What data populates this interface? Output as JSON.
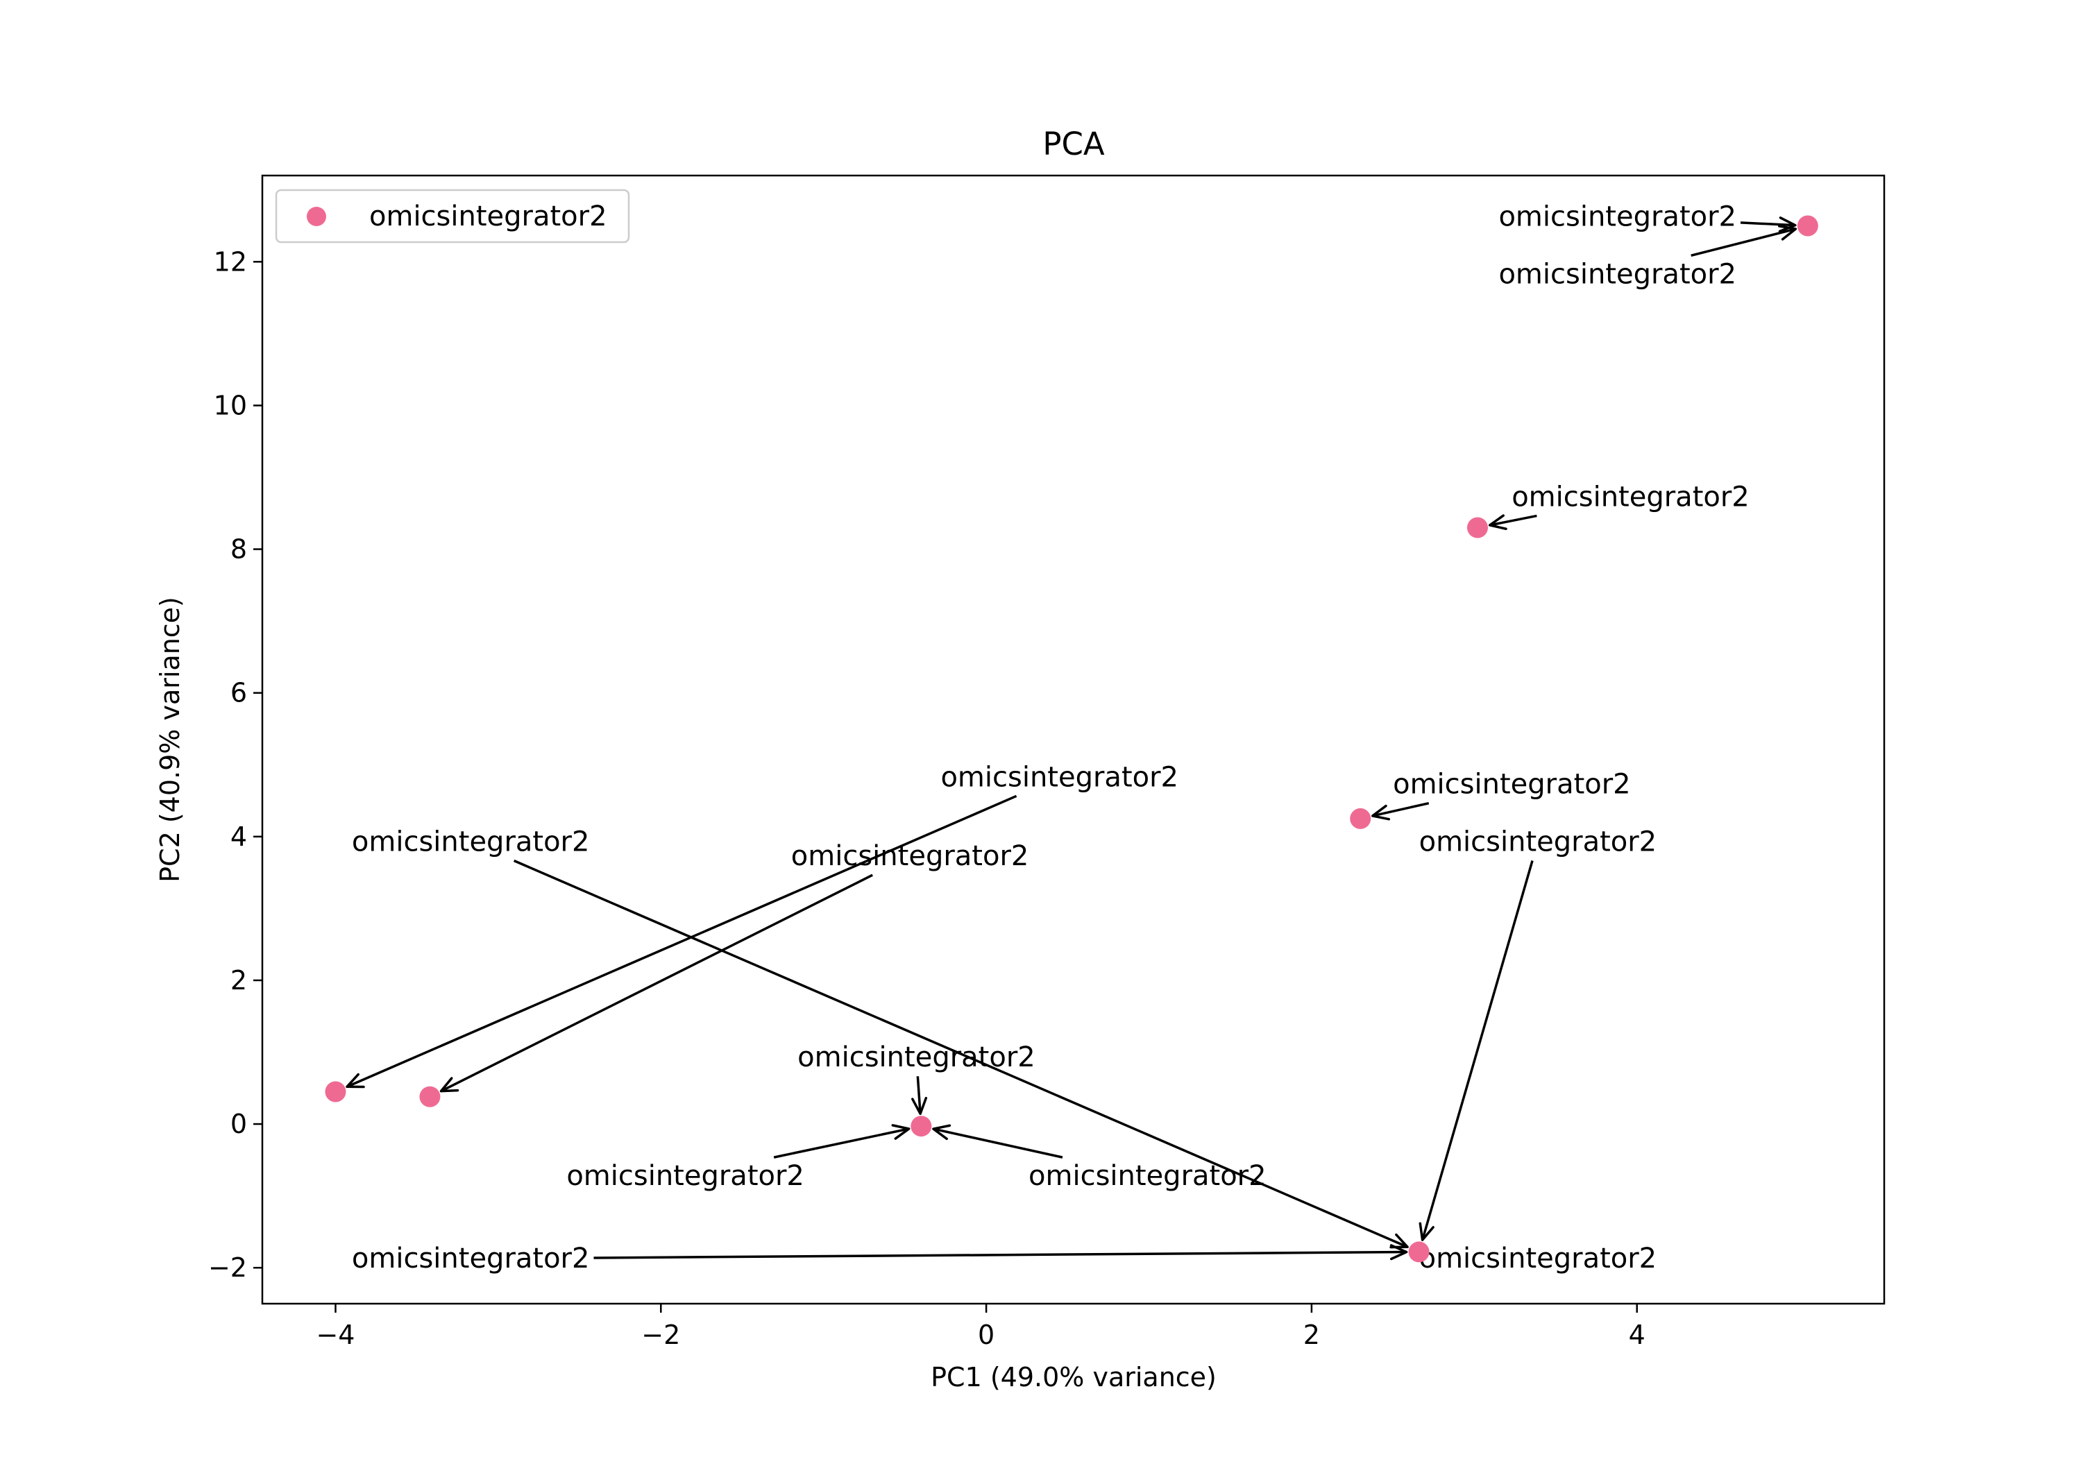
{
  "chart_data": {
    "type": "scatter",
    "title": "PCA",
    "xlabel": "PC1 (49.0% variance)",
    "ylabel": "PC2 (40.9% variance)",
    "xlim": [
      -4.45,
      5.52
    ],
    "ylim": [
      -2.5,
      13.2
    ],
    "xticks": [
      -4,
      -2,
      0,
      2,
      4
    ],
    "xtick_labels": [
      "−4",
      "−2",
      "0",
      "2",
      "4"
    ],
    "yticks": [
      -2,
      0,
      2,
      4,
      6,
      8,
      10,
      12
    ],
    "ytick_labels": [
      "−2",
      "0",
      "2",
      "4",
      "6",
      "8",
      "10",
      "12"
    ],
    "grid": false,
    "legend_position": "top-left",
    "marker_color": "#ef6a93",
    "series": [
      {
        "name": "omicsintegrator2",
        "points": [
          {
            "x": 5.05,
            "y": 12.5
          },
          {
            "x": 3.02,
            "y": 8.3
          },
          {
            "x": 2.3,
            "y": 4.25
          },
          {
            "x": -4.0,
            "y": 0.45
          },
          {
            "x": -3.42,
            "y": 0.38
          },
          {
            "x": -0.4,
            "y": -0.03
          },
          {
            "x": 2.66,
            "y": -1.78
          }
        ]
      }
    ],
    "annotations": [
      {
        "text": "omicsintegrator2",
        "text_x": 3.15,
        "text_y": 12.5,
        "target_x": 5.05,
        "target_y": 12.5
      },
      {
        "text": "omicsintegrator2",
        "text_x": 3.15,
        "text_y": 11.7,
        "target_x": 5.05,
        "target_y": 12.5
      },
      {
        "text": "omicsintegrator2",
        "text_x": 3.23,
        "text_y": 8.6,
        "target_x": 3.02,
        "target_y": 8.3
      },
      {
        "text": "omicsintegrator2",
        "text_x": 2.5,
        "text_y": 4.6,
        "target_x": 2.3,
        "target_y": 4.25
      },
      {
        "text": "omicsintegrator2",
        "text_x": 2.66,
        "text_y": 3.8,
        "target_x": 2.66,
        "target_y": -1.78
      },
      {
        "text": "omicsintegrator2",
        "text_x": 2.66,
        "text_y": -2.0,
        "target_x": 2.66,
        "target_y": -1.78
      },
      {
        "text": "omicsintegrator2",
        "text_x": -0.28,
        "text_y": 4.7,
        "target_x": -4.0,
        "target_y": 0.45
      },
      {
        "text": "omicsintegrator2",
        "text_x": -3.9,
        "text_y": 3.8,
        "target_x": 2.66,
        "target_y": -1.78
      },
      {
        "text": "omicsintegrator2",
        "text_x": -1.2,
        "text_y": 3.6,
        "target_x": -3.42,
        "target_y": 0.38
      },
      {
        "text": "omicsintegrator2",
        "text_x": -1.16,
        "text_y": 0.8,
        "target_x": -0.4,
        "target_y": -0.03
      },
      {
        "text": "omicsintegrator2",
        "text_x": -2.58,
        "text_y": -0.85,
        "target_x": -0.4,
        "target_y": -0.03
      },
      {
        "text": "omicsintegrator2",
        "text_x": 0.26,
        "text_y": -0.85,
        "target_x": -0.4,
        "target_y": -0.03
      },
      {
        "text": "omicsintegrator2",
        "text_x": -3.9,
        "text_y": -2.0,
        "target_x": 2.66,
        "target_y": -1.78
      }
    ]
  }
}
